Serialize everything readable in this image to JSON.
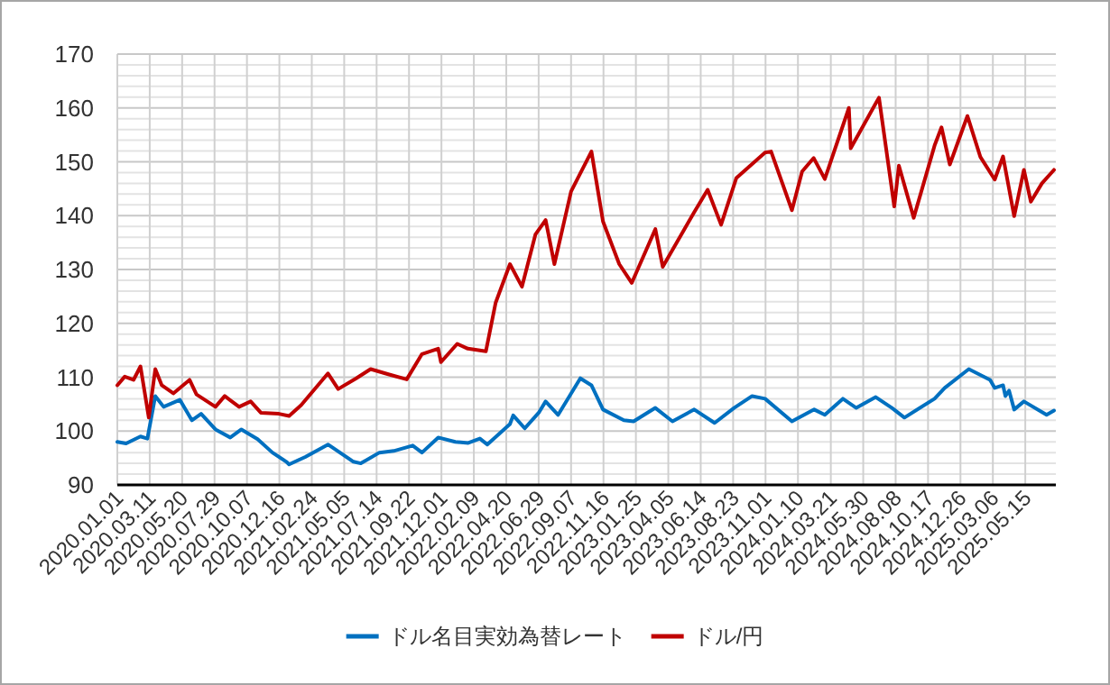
{
  "chart_data": {
    "type": "line",
    "x": [
      "2020-01-01",
      "2020-01-17",
      "2020-02-05",
      "2020-02-20",
      "2020-03-09",
      "2020-03-23",
      "2020-04-06",
      "2020-05-01",
      "2020-06-05",
      "2020-06-20",
      "2020-07-31",
      "2020-08-20",
      "2020-09-20",
      "2020-10-15",
      "2020-11-06",
      "2020-12-15",
      "2021-01-06",
      "2021-02-01",
      "2021-03-31",
      "2021-04-22",
      "2021-05-31",
      "2021-07-01",
      "2021-08-10",
      "2021-09-17",
      "2021-10-20",
      "2021-11-24",
      "2021-11-30",
      "2022-01-04",
      "2022-01-27",
      "2022-03-07",
      "2022-03-28",
      "2022-04-28",
      "2022-05-24",
      "2022-06-22",
      "2022-07-14",
      "2022-08-02",
      "2022-09-07",
      "2022-10-21",
      "2022-11-15",
      "2022-12-20",
      "2023-01-16",
      "2023-03-08",
      "2023-03-24",
      "2023-05-30",
      "2023-06-29",
      "2023-07-28",
      "2023-08-30",
      "2023-10-31",
      "2023-11-13",
      "2023-12-28",
      "2024-01-19",
      "2024-02-13",
      "2024-03-08",
      "2024-04-29",
      "2024-05-03",
      "2024-06-27",
      "2024-07-03",
      "2024-08-05",
      "2024-08-15",
      "2024-09-16",
      "2024-10-31",
      "2024-11-15",
      "2024-12-03",
      "2025-01-10",
      "2025-02-07",
      "2025-03-10",
      "2025-03-28",
      "2025-04-21",
      "2025-05-12",
      "2025-05-27",
      "2025-06-20",
      "2025-07-16"
    ],
    "series": [
      {
        "name": "ドル名目実効為替レート",
        "color": "#0070c0",
        "x": [
          "2020-01-01",
          "2020-01-20",
          "2020-02-20",
          "2020-03-06",
          "2020-03-23",
          "2020-04-10",
          "2020-05-15",
          "2020-06-10",
          "2020-06-30",
          "2020-07-31",
          "2020-09-01",
          "2020-09-25",
          "2020-10-30",
          "2020-12-01",
          "2020-12-31",
          "2021-01-06",
          "2021-02-10",
          "2021-03-31",
          "2021-05-25",
          "2021-06-10",
          "2021-07-20",
          "2021-08-20",
          "2021-09-30",
          "2021-10-20",
          "2021-11-24",
          "2021-12-31",
          "2022-01-28",
          "2022-02-22",
          "2022-03-10",
          "2022-04-28",
          "2022-05-05",
          "2022-05-30",
          "2022-06-30",
          "2022-07-14",
          "2022-08-10",
          "2022-09-27",
          "2022-10-21",
          "2022-11-15",
          "2022-12-30",
          "2023-01-20",
          "2023-03-08",
          "2023-04-14",
          "2023-05-31",
          "2023-07-14",
          "2023-08-25",
          "2023-10-03",
          "2023-10-31",
          "2023-12-28",
          "2024-02-14",
          "2024-03-08",
          "2024-04-16",
          "2024-05-15",
          "2024-06-26",
          "2024-07-31",
          "2024-08-27",
          "2024-10-31",
          "2024-11-22",
          "2025-01-13",
          "2025-02-03",
          "2025-02-28",
          "2025-03-10",
          "2025-03-28",
          "2025-04-02",
          "2025-04-10",
          "2025-04-21",
          "2025-05-12",
          "2025-06-30",
          "2025-07-16"
        ],
        "values": [
          98.0,
          97.7,
          99.0,
          98.6,
          106.5,
          104.5,
          105.8,
          102.0,
          103.2,
          100.3,
          98.8,
          100.3,
          98.5,
          96.0,
          94.3,
          93.8,
          95.2,
          97.5,
          94.3,
          94.0,
          96.0,
          96.3,
          97.3,
          96.0,
          98.8,
          98.0,
          97.8,
          98.6,
          97.5,
          101.3,
          102.9,
          100.5,
          103.5,
          105.5,
          103.0,
          109.8,
          108.5,
          104.0,
          102.0,
          101.8,
          104.3,
          101.8,
          104.0,
          101.5,
          104.3,
          106.5,
          106.0,
          101.8,
          104.0,
          103.0,
          106.0,
          104.3,
          106.3,
          104.3,
          102.5,
          106.0,
          108.0,
          111.5,
          110.6,
          109.5,
          108.0,
          108.5,
          106.5,
          107.5,
          104.0,
          105.5,
          103.0,
          103.8
        ]
      },
      {
        "name": "ドル/円",
        "color": "#c00000",
        "values": [
          108.5,
          110.1,
          109.5,
          112.0,
          102.5,
          111.5,
          108.5,
          107.0,
          109.5,
          106.8,
          104.5,
          106.5,
          104.5,
          105.5,
          103.4,
          103.2,
          102.8,
          104.8,
          110.7,
          107.8,
          109.8,
          111.5,
          110.5,
          109.6,
          114.3,
          115.3,
          112.8,
          116.2,
          115.3,
          114.8,
          123.8,
          131.0,
          126.8,
          136.5,
          139.2,
          131.0,
          144.5,
          151.9,
          138.9,
          131.0,
          127.5,
          137.5,
          130.5,
          140.5,
          144.8,
          138.3,
          147.0,
          151.7,
          151.9,
          141.0,
          148.2,
          150.7,
          146.8,
          160.0,
          152.5,
          161.0,
          161.9,
          141.7,
          149.3,
          139.6,
          153.0,
          156.4,
          149.5,
          158.5,
          150.9,
          146.7,
          151.0,
          139.9,
          148.5,
          142.6,
          146.0,
          148.5
        ]
      }
    ],
    "xlim": [
      "2020-01-01",
      "2025-07-20"
    ],
    "xticks": [
      {
        "value": "2020-01-01",
        "label": "2020.01.01"
      },
      {
        "value": "2020-03-11",
        "label": "2020.03.11"
      },
      {
        "value": "2020-05-20",
        "label": "2020.05.20"
      },
      {
        "value": "2020-07-29",
        "label": "2020.07.29"
      },
      {
        "value": "2020-10-07",
        "label": "2020.10.07"
      },
      {
        "value": "2020-12-16",
        "label": "2020.12.16"
      },
      {
        "value": "2021-02-24",
        "label": "2021.02.24"
      },
      {
        "value": "2021-05-05",
        "label": "2021.05.05"
      },
      {
        "value": "2021-07-14",
        "label": "2021.07.14"
      },
      {
        "value": "2021-09-22",
        "label": "2021.09.22"
      },
      {
        "value": "2021-12-01",
        "label": "2021.12.01"
      },
      {
        "value": "2022-02-09",
        "label": "2022.02.09"
      },
      {
        "value": "2022-04-20",
        "label": "2022.04.20"
      },
      {
        "value": "2022-06-29",
        "label": "2022.06.29"
      },
      {
        "value": "2022-09-07",
        "label": "2022.09.07"
      },
      {
        "value": "2022-11-16",
        "label": "2022.11.16"
      },
      {
        "value": "2023-01-25",
        "label": "2023.01.25"
      },
      {
        "value": "2023-04-05",
        "label": "2023.04.05"
      },
      {
        "value": "2023-06-14",
        "label": "2023.06.14"
      },
      {
        "value": "2023-08-23",
        "label": "2023.08.23"
      },
      {
        "value": "2023-11-01",
        "label": "2023.11.01"
      },
      {
        "value": "2024-01-10",
        "label": "2024.01.10"
      },
      {
        "value": "2024-03-21",
        "label": "2024.03.21"
      },
      {
        "value": "2024-05-30",
        "label": "2024.05.30"
      },
      {
        "value": "2024-08-08",
        "label": "2024.08.08"
      },
      {
        "value": "2024-10-17",
        "label": "2024.10.17"
      },
      {
        "value": "2024-12-26",
        "label": "2024.12.26"
      },
      {
        "value": "2025-03-06",
        "label": "2025.03.06"
      },
      {
        "value": "2025-05-15",
        "label": "2025.05.15"
      }
    ],
    "ylim": [
      90,
      170
    ],
    "yticks": [
      90,
      {
        "value": 92,
        "label": null
      },
      {
        "value": 94,
        "label": null
      },
      {
        "value": 96,
        "label": null
      },
      {
        "value": 98,
        "label": null
      },
      100,
      {
        "value": 102,
        "label": null
      },
      {
        "value": 104,
        "label": null
      },
      {
        "value": 106,
        "label": null
      },
      {
        "value": 108,
        "label": null
      },
      110,
      {
        "value": 112,
        "label": null
      },
      {
        "value": 114,
        "label": null
      },
      {
        "value": 116,
        "label": null
      },
      {
        "value": 118,
        "label": null
      },
      120,
      {
        "value": 122,
        "label": null
      },
      {
        "value": 124,
        "label": null
      },
      {
        "value": 126,
        "label": null
      },
      {
        "value": 128,
        "label": null
      },
      130,
      {
        "value": 132,
        "label": null
      },
      {
        "value": 134,
        "label": null
      },
      {
        "value": 136,
        "label": null
      },
      {
        "value": 138,
        "label": null
      },
      140,
      {
        "value": 142,
        "label": null
      },
      {
        "value": 144,
        "label": null
      },
      {
        "value": 146,
        "label": null
      },
      {
        "value": 148,
        "label": null
      },
      150,
      {
        "value": 152,
        "label": null
      },
      {
        "value": 154,
        "label": null
      },
      {
        "value": 156,
        "label": null
      },
      {
        "value": 158,
        "label": null
      },
      160,
      {
        "value": 162,
        "label": null
      },
      {
        "value": 164,
        "label": null
      },
      {
        "value": 166,
        "label": null
      },
      {
        "value": 168,
        "label": null
      },
      170
    ],
    "grid": true,
    "legend": "bottom",
    "marker": "none",
    "line_style": "solid"
  }
}
